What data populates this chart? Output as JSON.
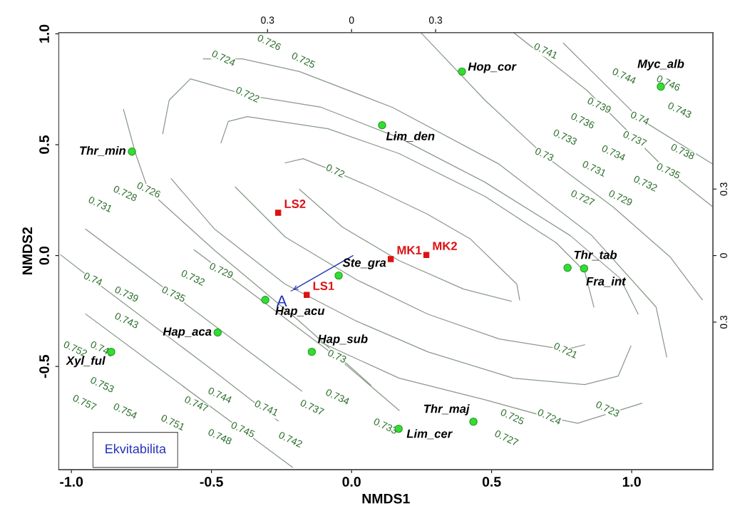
{
  "chart_data": {
    "type": "scatter",
    "xlabel": "NMDS1",
    "ylabel": "NMDS2",
    "xlim": [
      -1.045,
      1.29
    ],
    "ylim": [
      -0.965,
      1.006
    ],
    "xticks": [
      {
        "value": -1.0,
        "label": "-1.0"
      },
      {
        "value": -0.5,
        "label": "-0.5"
      },
      {
        "value": 0.0,
        "label": "0.0"
      },
      {
        "value": 0.5,
        "label": "0.5"
      },
      {
        "value": 1.0,
        "label": "1.0"
      }
    ],
    "yticks": [
      {
        "value": -0.5,
        "label": "-0.5"
      },
      {
        "value": 0.0,
        "label": "0.0"
      },
      {
        "value": 0.5,
        "label": "0.5"
      },
      {
        "value": 1.0,
        "label": "1.0"
      }
    ],
    "x2lim": [
      -1.045,
      1.29
    ],
    "x2ticks": [
      {
        "value": -0.3,
        "label": "0.3"
      },
      0,
      0.3
    ],
    "y2lim": [
      -0.965,
      1.006
    ],
    "y2ticks": [
      {
        "value": -0.3,
        "label": "0.3"
      },
      0,
      0.3
    ],
    "grid": false,
    "series": [
      {
        "type": "line",
        "color": "#8a9a8a",
        "x": [
          -0.237,
          -0.173,
          -0.059,
          0.069,
          0.272,
          0.425,
          0.59,
          0.6
        ],
        "values": [
          0.418,
          0.437,
          0.379,
          0.309,
          0.186,
          0.074,
          -0.129,
          -0.2
        ]
      },
      {
        "type": "line",
        "color": "#8a9a8a",
        "x": [
          0.57,
          0.4,
          0.17,
          -0.033,
          -0.186
        ],
        "values": [
          -0.206,
          -0.151,
          -0.023,
          0.129,
          0.299
        ]
      },
      {
        "type": "line",
        "color": "#8a9a8a",
        "x": [
          -0.466,
          -0.44,
          -0.372,
          -0.084,
          0.17,
          0.476,
          0.73,
          0.832,
          0.865
        ],
        "values": [
          0.508,
          0.605,
          0.627,
          0.572,
          0.46,
          0.267,
          0.058,
          -0.071,
          -0.232
        ]
      },
      {
        "type": "line",
        "color": "#8a9a8a",
        "x": [
          0.832,
          0.763,
          0.527,
          0.272,
          0.018,
          -0.237,
          -0.415
        ],
        "values": [
          -0.402,
          -0.424,
          -0.376,
          -0.264,
          -0.109,
          0.084,
          0.309
        ]
      },
      {
        "type": "line",
        "color": "#8a9a8a",
        "x": [
          -0.674,
          -0.651,
          -0.575,
          -0.372,
          -0.109,
          0.17,
          0.476,
          0.781,
          0.959,
          1.023
        ],
        "values": [
          0.55,
          0.701,
          0.797,
          0.723,
          0.669,
          0.531,
          0.331,
          0.09,
          -0.103,
          -0.264
        ]
      },
      {
        "type": "line",
        "color": "#8a9a8a",
        "x": [
          0.997,
          0.952,
          0.832,
          0.578,
          0.272,
          0.018,
          -0.237,
          -0.491,
          -0.644
        ],
        "values": [
          -0.408,
          -0.543,
          -0.582,
          -0.553,
          -0.434,
          -0.296,
          -0.129,
          0.122,
          0.347
        ]
      },
      {
        "type": "line",
        "color": "#8a9a8a",
        "x": [
          -0.529,
          -0.389,
          -0.186,
          0.145,
          0.527,
          0.858,
          1.087,
          1.125
        ],
        "values": [
          0.887,
          0.887,
          0.83,
          0.669,
          0.412,
          0.09,
          -0.232,
          -0.457
        ]
      },
      {
        "type": "line",
        "color": "#8a9a8a",
        "x": [
          1.036,
          0.807,
          0.705,
          0.476,
          0.17,
          -0.109
        ],
        "values": [
          -0.666,
          -0.756,
          -0.73,
          -0.65,
          -0.553,
          -0.392
        ]
      },
      {
        "type": "line",
        "color": "#8a9a8a",
        "x": [
          0.247,
          0.476,
          0.687,
          0.934,
          1.137,
          1.252
        ],
        "values": [
          1.006,
          0.701,
          0.453,
          0.219,
          -0.006,
          -0.199
        ]
      },
      {
        "type": "line",
        "color": "#8a9a8a",
        "x": [
          0.578,
          0.84,
          1.13,
          1.29
        ],
        "values": [
          1.006,
          0.745,
          0.379,
          0.219
        ]
      },
      {
        "type": "line",
        "color": "#8a9a8a",
        "x": [
          0.756,
          1.028,
          1.29
        ],
        "values": [
          0.958,
          0.617,
          0.412
        ]
      },
      {
        "type": "line",
        "color": "#8a9a8a",
        "x": [
          -0.814,
          -0.771,
          -0.725,
          -0.491,
          -0.186,
          0.069
        ],
        "values": [
          0.659,
          0.46,
          0.293,
          0.026,
          -0.296,
          -0.585
        ]
      },
      {
        "type": "line",
        "color": "#8a9a8a",
        "x": [
          -0.562,
          -0.053,
          0.17
        ],
        "values": [
          0.026,
          -0.457,
          -0.698
        ]
      },
      {
        "type": "line",
        "color": "#8a9a8a",
        "x": [
          -0.949,
          -0.636,
          -0.178
        ],
        "values": [
          0.119,
          -0.177,
          -0.611
        ]
      },
      {
        "type": "line",
        "color": "#8a9a8a",
        "x": [
          -1.038,
          -0.924,
          -0.491,
          -0.262
        ],
        "values": [
          0.003,
          -0.109,
          -0.521,
          -0.746
        ]
      },
      {
        "type": "line",
        "color": "#8a9a8a",
        "x": [
          -0.949,
          -0.389,
          -0.211
        ],
        "values": [
          -0.264,
          -0.788,
          -0.955
        ]
      },
      {
        "type": "line",
        "color": "#3344bb",
        "x": [
          0.005,
          -0.216
        ],
        "values": [
          0.0,
          -0.16
        ]
      },
      {
        "marker": "circle",
        "color": "#33dd33",
        "x": [
          0.394,
          1.104,
          0.109,
          -0.784,
          -0.046,
          0.771,
          0.83,
          -0.308,
          -0.478,
          -0.142,
          -0.858,
          0.435,
          0.168
        ],
        "values": [
          0.83,
          0.762,
          0.588,
          0.469,
          -0.09,
          -0.055,
          -0.058,
          -0.2,
          -0.347,
          -0.434,
          -0.434,
          -0.749,
          -0.781
        ],
        "value_labels": [
          "Hop_cor",
          "Myc_alb",
          "Lim_den",
          "Thr_min",
          "Ste_gra",
          "Thr_tab",
          "Fra_int",
          "Hap_acu",
          "Hap_aca",
          "Hap_sub",
          "Xyl_ful",
          "Thr_maj",
          "Lim_cer"
        ]
      },
      {
        "marker": "square",
        "color": "#dd1111",
        "x": [
          -0.262,
          0.14,
          0.267,
          -0.16
        ],
        "values": [
          0.193,
          -0.016,
          0.003,
          -0.177
        ],
        "value_labels": [
          "LS2",
          "MK1",
          "MK2",
          "LS1"
        ]
      }
    ],
    "annotations": [
      "Ekvitabilita",
      {
        "text": "A",
        "x": -0.216,
        "y": -0.16
      },
      {
        "text": "0.72",
        "x": -0.059,
        "y": 0.379
      },
      {
        "text": "0.721",
        "x": 0.763,
        "y": -0.431
      },
      {
        "text": "0.722",
        "x": -0.372,
        "y": 0.723
      },
      {
        "text": "0.723",
        "x": 0.913,
        "y": -0.695
      },
      {
        "text": "0.724",
        "x": -0.458,
        "y": 0.887
      },
      {
        "text": "0.724",
        "x": 0.705,
        "y": -0.73
      },
      {
        "text": "0.725",
        "x": -0.173,
        "y": 0.878
      },
      {
        "text": "0.725",
        "x": 0.573,
        "y": -0.73
      },
      {
        "text": "0.726",
        "x": -0.295,
        "y": 0.958
      },
      {
        "text": "0.726",
        "x": -0.725,
        "y": 0.293
      },
      {
        "text": "0.727",
        "x": 0.552,
        "y": -0.826
      },
      {
        "text": "0.727",
        "x": 0.824,
        "y": 0.257
      },
      {
        "text": "0.728",
        "x": -0.809,
        "y": 0.277
      },
      {
        "text": "0.729",
        "x": 0.959,
        "y": 0.257
      },
      {
        "text": "0.729",
        "x": -0.466,
        "y": -0.071
      },
      {
        "text": "0.73",
        "x": 0.687,
        "y": 0.453
      },
      {
        "text": "0.73",
        "x": -0.053,
        "y": -0.457
      },
      {
        "text": "0.731",
        "x": 0.865,
        "y": 0.389
      },
      {
        "text": "0.731",
        "x": -0.898,
        "y": 0.228
      },
      {
        "text": "0.732",
        "x": 1.048,
        "y": 0.322
      },
      {
        "text": "0.732",
        "x": -0.567,
        "y": -0.103
      },
      {
        "text": "0.733",
        "x": 0.761,
        "y": 0.531
      },
      {
        "text": "0.733",
        "x": 0.12,
        "y": -0.772
      },
      {
        "text": "0.734",
        "x": 0.934,
        "y": 0.46
      },
      {
        "text": "0.734",
        "x": -0.051,
        "y": -0.64
      },
      {
        "text": "0.735",
        "x": 1.13,
        "y": 0.379
      },
      {
        "text": "0.735",
        "x": -0.636,
        "y": -0.177
      },
      {
        "text": "0.736",
        "x": 0.824,
        "y": 0.605
      },
      {
        "text": "0.737",
        "x": 1.01,
        "y": 0.524
      },
      {
        "text": "0.737",
        "x": -0.142,
        "y": -0.688
      },
      {
        "text": "0.738",
        "x": 1.181,
        "y": 0.466
      },
      {
        "text": "0.739",
        "x": 0.883,
        "y": 0.675
      },
      {
        "text": "0.739",
        "x": -0.804,
        "y": -0.177
      },
      {
        "text": "0.74",
        "x": 1.028,
        "y": 0.617
      },
      {
        "text": "0.74",
        "x": -0.924,
        "y": -0.109
      },
      {
        "text": "0.741",
        "x": 0.692,
        "y": 0.92
      },
      {
        "text": "0.741",
        "x": -0.305,
        "y": -0.691
      },
      {
        "text": "0.742",
        "x": -0.219,
        "y": -0.833
      },
      {
        "text": "0.743",
        "x": 1.17,
        "y": 0.653
      },
      {
        "text": "0.743",
        "x": -0.804,
        "y": -0.296
      },
      {
        "text": "0.744",
        "x": 0.972,
        "y": 0.807
      },
      {
        "text": "0.744",
        "x": -0.471,
        "y": -0.633
      },
      {
        "text": "0.745",
        "x": -0.389,
        "y": -0.788
      },
      {
        "text": "0.746",
        "x": 1.13,
        "y": 0.775
      },
      {
        "text": "0.747",
        "x": -0.555,
        "y": -0.672
      },
      {
        "text": "0.748",
        "x": -0.471,
        "y": -0.82
      },
      {
        "text": "0.749",
        "x": -0.891,
        "y": -0.424
      },
      {
        "text": "0.751",
        "x": -0.639,
        "y": -0.756
      },
      {
        "text": "0.752",
        "x": -0.987,
        "y": -0.424
      },
      {
        "text": "0.753",
        "x": -0.891,
        "y": -0.585
      },
      {
        "text": "0.754",
        "x": -0.809,
        "y": -0.704
      },
      {
        "text": "0.757",
        "x": -0.954,
        "y": -0.666
      }
    ]
  }
}
